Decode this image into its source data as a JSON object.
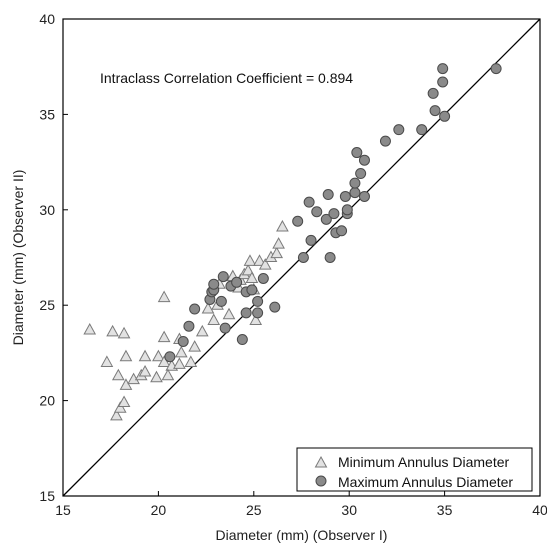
{
  "chart_data": {
    "type": "scatter",
    "title": "",
    "xlabel": "Diameter (mm) (Observer I)",
    "ylabel": "Diameter (mm) (Observer II)",
    "xlim": [
      15,
      40
    ],
    "ylim": [
      15,
      40
    ],
    "xticks": [
      15,
      20,
      25,
      30,
      35,
      40
    ],
    "yticks": [
      15,
      20,
      25,
      30,
      35,
      40
    ],
    "grid": false,
    "legend_position": "bottom-right",
    "annotation": "Intraclass Correlation Coefficient = 0.894",
    "reference_line": {
      "kind": "identity",
      "from": [
        15,
        15
      ],
      "to": [
        40,
        40
      ]
    },
    "colors": {
      "min_fill": "#e2e2e2",
      "min_stroke": "#7a7a7a",
      "max_fill": "#8a8a8a",
      "max_stroke": "#4a4a4a",
      "line": "#000000"
    },
    "series": [
      {
        "name": "Minimum Annulus Diameter",
        "marker": "triangle",
        "points": [
          [
            16.4,
            23.7
          ],
          [
            17.3,
            22.0
          ],
          [
            17.6,
            23.6
          ],
          [
            18.2,
            23.5
          ],
          [
            18.3,
            22.3
          ],
          [
            17.9,
            21.3
          ],
          [
            18.3,
            20.8
          ],
          [
            18.7,
            21.1
          ],
          [
            17.8,
            19.2
          ],
          [
            18.0,
            19.6
          ],
          [
            18.2,
            19.9
          ],
          [
            19.1,
            21.3
          ],
          [
            19.3,
            22.3
          ],
          [
            19.3,
            21.5
          ],
          [
            19.9,
            21.2
          ],
          [
            20.0,
            22.3
          ],
          [
            20.3,
            22.0
          ],
          [
            20.7,
            21.8
          ],
          [
            20.3,
            23.3
          ],
          [
            20.3,
            25.4
          ],
          [
            20.5,
            21.3
          ],
          [
            21.1,
            21.9
          ],
          [
            21.2,
            22.5
          ],
          [
            21.1,
            23.2
          ],
          [
            21.7,
            22.0
          ],
          [
            21.9,
            22.8
          ],
          [
            22.3,
            23.6
          ],
          [
            22.6,
            24.8
          ],
          [
            22.9,
            24.2
          ],
          [
            23.1,
            25.0
          ],
          [
            23.7,
            24.5
          ],
          [
            23.2,
            26.1
          ],
          [
            23.9,
            26.5
          ],
          [
            24.2,
            25.9
          ],
          [
            24.3,
            26.3
          ],
          [
            24.5,
            26.6
          ],
          [
            24.7,
            26.8
          ],
          [
            24.8,
            27.3
          ],
          [
            24.9,
            26.4
          ],
          [
            25.1,
            24.2
          ],
          [
            25.3,
            27.3
          ],
          [
            25.6,
            27.1
          ],
          [
            25.9,
            27.5
          ],
          [
            26.2,
            27.7
          ],
          [
            26.3,
            28.2
          ],
          [
            26.5,
            29.1
          ],
          [
            25.0,
            25.8
          ]
        ]
      },
      {
        "name": "Maximum Annulus Diameter",
        "marker": "circle",
        "points": [
          [
            20.6,
            22.3
          ],
          [
            21.3,
            23.1
          ],
          [
            21.6,
            23.9
          ],
          [
            21.9,
            24.8
          ],
          [
            22.7,
            25.3
          ],
          [
            22.8,
            25.7
          ],
          [
            22.9,
            25.8
          ],
          [
            22.9,
            26.1
          ],
          [
            23.3,
            25.2
          ],
          [
            23.4,
            26.5
          ],
          [
            23.5,
            23.8
          ],
          [
            23.8,
            26.0
          ],
          [
            24.1,
            26.2
          ],
          [
            24.4,
            23.2
          ],
          [
            24.6,
            24.6
          ],
          [
            24.6,
            25.7
          ],
          [
            24.9,
            25.8
          ],
          [
            25.2,
            25.2
          ],
          [
            25.2,
            24.6
          ],
          [
            25.5,
            26.4
          ],
          [
            26.1,
            24.9
          ],
          [
            27.3,
            29.4
          ],
          [
            27.6,
            27.5
          ],
          [
            27.9,
            30.4
          ],
          [
            28.0,
            28.4
          ],
          [
            28.3,
            29.9
          ],
          [
            28.8,
            29.5
          ],
          [
            28.9,
            30.8
          ],
          [
            29.0,
            27.5
          ],
          [
            29.2,
            29.8
          ],
          [
            29.3,
            28.8
          ],
          [
            29.6,
            28.9
          ],
          [
            29.8,
            30.7
          ],
          [
            29.9,
            29.8
          ],
          [
            29.9,
            30.0
          ],
          [
            30.3,
            30.9
          ],
          [
            30.3,
            31.4
          ],
          [
            30.4,
            33.0
          ],
          [
            30.6,
            31.9
          ],
          [
            30.8,
            30.7
          ],
          [
            30.8,
            32.6
          ],
          [
            31.9,
            33.6
          ],
          [
            32.6,
            34.2
          ],
          [
            33.8,
            34.2
          ],
          [
            34.4,
            36.1
          ],
          [
            34.5,
            35.2
          ],
          [
            34.9,
            36.7
          ],
          [
            34.9,
            37.4
          ],
          [
            35.0,
            34.9
          ],
          [
            37.7,
            37.4
          ]
        ]
      }
    ]
  }
}
